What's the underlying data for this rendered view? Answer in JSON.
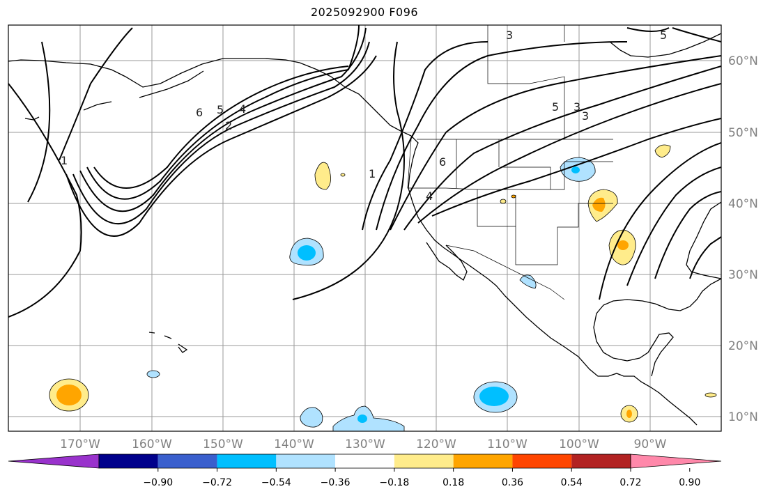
{
  "title": "2025092900 F096",
  "longitude_labels": [
    "170°W",
    "160°W",
    "150°W",
    "140°W",
    "130°W",
    "120°W",
    "110°W",
    "100°W",
    "90°W"
  ],
  "latitude_labels": [
    "60°N",
    "50°N",
    "40°N",
    "30°N",
    "20°N",
    "10°N"
  ],
  "contour_labels": [
    "6",
    "5",
    "4",
    "2",
    "1",
    "1",
    "6",
    "4",
    "5",
    "3",
    "3",
    "5",
    "3"
  ],
  "colorbar": {
    "tick_labels": [
      "−0.90",
      "−0.72",
      "−0.54",
      "−0.36",
      "−0.18",
      "0.18",
      "0.36",
      "0.54",
      "0.72",
      "0.90"
    ],
    "colors": [
      "#9932cc",
      "#00008b",
      "#3a5fcd",
      "#00bfff",
      "#b0e2ff",
      "#ffffff",
      "#ffec8b",
      "#ffa500",
      "#ff4500",
      "#b22222",
      "#ff88aa"
    ]
  },
  "shading_colors": {
    "light_blue": "#b0e2ff",
    "blue": "#00bfff",
    "yellow": "#ffec8b",
    "orange": "#ffa500"
  }
}
